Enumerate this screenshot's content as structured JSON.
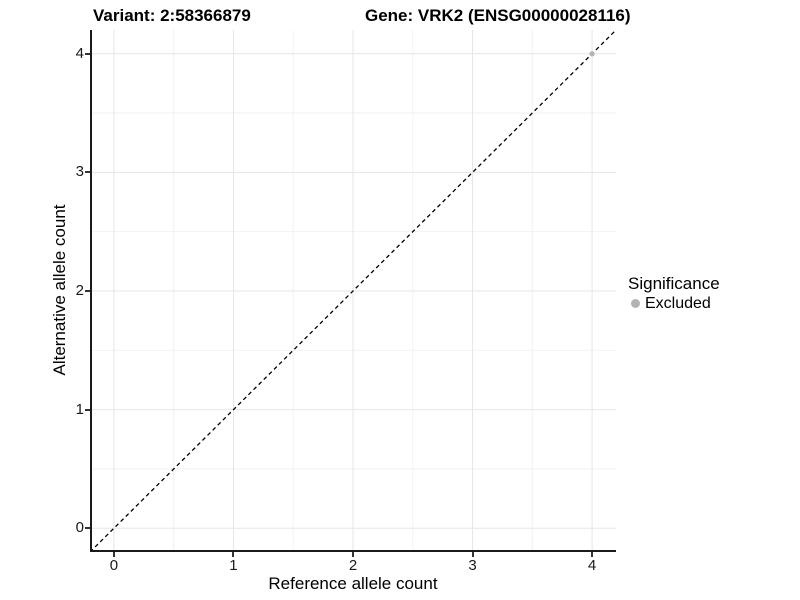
{
  "titles": {
    "variant": "Variant: 2:58366879",
    "gene": "Gene: VRK2 (ENSG00000028116)"
  },
  "chart_data": {
    "type": "scatter",
    "xlabel": "Reference allele count",
    "ylabel": "Alternative allele count",
    "xlim": [
      -0.2,
      4.2
    ],
    "ylim": [
      -0.2,
      4.2
    ],
    "xticks": [
      0,
      1,
      2,
      3,
      4
    ],
    "yticks": [
      0,
      1,
      2,
      3,
      4
    ],
    "x_minor_ticks": [
      0.5,
      1.5,
      2.5,
      3.5
    ],
    "y_minor_ticks": [
      0.5,
      1.5,
      2.5,
      3.5
    ],
    "grid": "major+minor",
    "reference_line": {
      "type": "identity y=x",
      "style": "dashed",
      "color": "#000000",
      "from": [
        -0.2,
        -0.2
      ],
      "to": [
        4.2,
        4.2
      ]
    },
    "series": [
      {
        "name": "Excluded",
        "color": "#b3b3b3",
        "points": [
          [
            4,
            4
          ]
        ]
      }
    ],
    "legend": {
      "title": "Significance",
      "position": "right",
      "items": [
        {
          "label": "Excluded",
          "color": "#b3b3b3",
          "marker": "circle"
        }
      ]
    }
  },
  "colors": {
    "axis_line": "#1a1a1a",
    "tick_mark": "#333333",
    "major_grid": "#e6e6e6",
    "minor_grid": "#f2f2f2",
    "text": "#000000",
    "background": "#ffffff"
  }
}
